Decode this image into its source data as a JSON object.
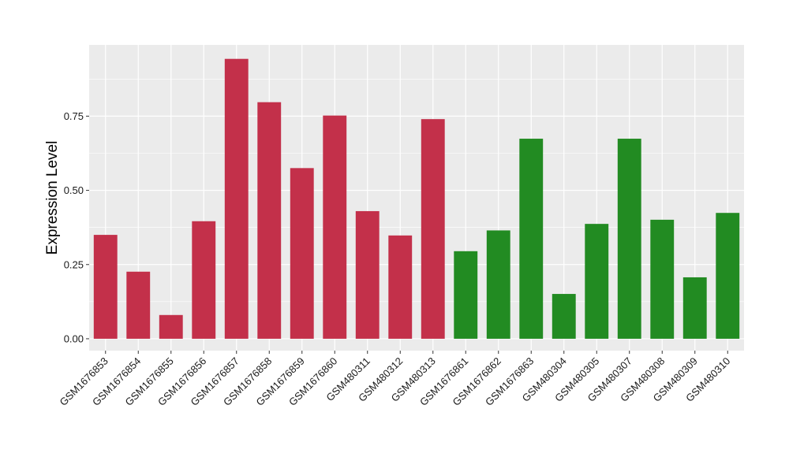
{
  "chart_data": {
    "type": "bar",
    "title": "",
    "xlabel": "",
    "ylabel": "Expression Level",
    "ylim": [
      -0.04,
      0.99
    ],
    "yticks": [
      0.0,
      0.25,
      0.5,
      0.75
    ],
    "ytick_labels": [
      "0.00",
      "0.25",
      "0.50",
      "0.75"
    ],
    "grid": true,
    "legend": "none",
    "categories": [
      "GSM1676853",
      "GSM1676854",
      "GSM1676855",
      "GSM1676856",
      "GSM1676857",
      "GSM1676858",
      "GSM1676859",
      "GSM1676860",
      "GSM480311",
      "GSM480312",
      "GSM480313",
      "GSM1676861",
      "GSM1676862",
      "GSM1676863",
      "GSM480304",
      "GSM480305",
      "GSM480307",
      "GSM480308",
      "GSM480309",
      "GSM480310"
    ],
    "values": [
      0.35,
      0.226,
      0.08,
      0.396,
      0.943,
      0.797,
      0.575,
      0.752,
      0.43,
      0.348,
      0.74,
      0.295,
      0.365,
      0.674,
      0.151,
      0.387,
      0.674,
      0.401,
      0.207,
      0.424
    ],
    "bar_colors": [
      "#C3304A",
      "#C3304A",
      "#C3304A",
      "#C3304A",
      "#C3304A",
      "#C3304A",
      "#C3304A",
      "#C3304A",
      "#C3304A",
      "#C3304A",
      "#C3304A",
      "#228B22",
      "#228B22",
      "#228B22",
      "#228B22",
      "#228B22",
      "#228B22",
      "#228B22",
      "#228B22",
      "#228B22"
    ],
    "panel_background": "#EBEBEB",
    "grid_color": "#FFFFFF"
  }
}
